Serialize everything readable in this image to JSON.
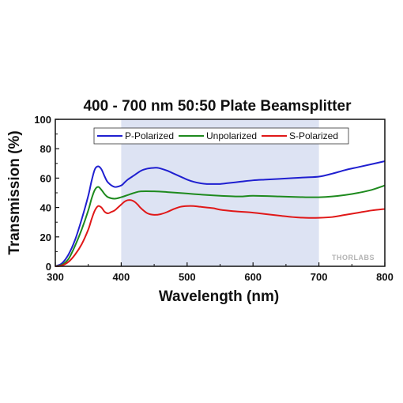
{
  "chart_data": {
    "type": "line",
    "title": "400 - 700 nm 50:50 Plate Beamsplitter",
    "xlabel": "Wavelength (nm)",
    "ylabel": "Transmission (%)",
    "xlim": [
      300,
      800
    ],
    "ylim": [
      0,
      100
    ],
    "xticks": [
      300,
      400,
      500,
      600,
      700,
      800
    ],
    "yticks": [
      0,
      20,
      40,
      60,
      80,
      100
    ],
    "shaded_region": [
      400,
      700
    ],
    "shaded_color": "#dde3f3",
    "grid": false,
    "legend_position": "top-center",
    "watermark": "THORLABS",
    "series": [
      {
        "name": "P-Polarized",
        "color": "#1f1fd0",
        "x": [
          300,
          310,
          320,
          330,
          340,
          350,
          355,
          360,
          365,
          370,
          375,
          380,
          390,
          400,
          405,
          410,
          420,
          430,
          440,
          450,
          455,
          460,
          470,
          480,
          490,
          500,
          510,
          520,
          530,
          540,
          550,
          560,
          580,
          600,
          620,
          640,
          660,
          680,
          700,
          720,
          740,
          760,
          780,
          800
        ],
        "y": [
          0,
          2,
          8,
          18,
          32,
          48,
          58,
          66,
          68,
          66,
          61,
          57,
          54,
          55,
          57,
          59,
          62,
          65,
          66.5,
          67,
          67,
          66.5,
          65,
          63,
          61,
          59,
          57.5,
          56.5,
          56,
          56,
          56,
          56.5,
          57.5,
          58.5,
          59,
          59.5,
          60,
          60.5,
          61,
          63,
          65.5,
          67.5,
          69.5,
          71.5
        ]
      },
      {
        "name": "Unpolarized",
        "color": "#1e8a1e",
        "x": [
          300,
          310,
          320,
          330,
          340,
          350,
          355,
          360,
          365,
          370,
          375,
          380,
          390,
          400,
          410,
          420,
          430,
          450,
          470,
          500,
          530,
          550,
          580,
          600,
          640,
          680,
          700,
          720,
          740,
          760,
          780,
          800
        ],
        "y": [
          0,
          1,
          5,
          14,
          25,
          38,
          46,
          52,
          54,
          52,
          49,
          47,
          46,
          47,
          48.5,
          50,
          51,
          51,
          50.5,
          49.5,
          48.5,
          48,
          47.5,
          48,
          47.5,
          47,
          47,
          47.5,
          48.5,
          50,
          52,
          55
        ]
      },
      {
        "name": "S-Polarized",
        "color": "#e01818",
        "x": [
          300,
          310,
          320,
          330,
          340,
          350,
          355,
          360,
          365,
          370,
          375,
          380,
          385,
          390,
          395,
          400,
          405,
          410,
          415,
          420,
          425,
          430,
          440,
          450,
          460,
          470,
          480,
          490,
          500,
          510,
          520,
          530,
          540,
          550,
          570,
          600,
          620,
          640,
          660,
          680,
          700,
          720,
          740,
          760,
          780,
          800
        ],
        "y": [
          0,
          0.5,
          3,
          8,
          15,
          25,
          32,
          38,
          41,
          40,
          37,
          36,
          37,
          38,
          40,
          42,
          44,
          45,
          45,
          44,
          42,
          39.5,
          36,
          35,
          35.5,
          37,
          39,
          40.5,
          41,
          41,
          40.5,
          40,
          39.5,
          38.5,
          37.5,
          36.5,
          35.5,
          34.5,
          33.5,
          33,
          33,
          33.5,
          35,
          36.5,
          38,
          39
        ]
      }
    ]
  }
}
